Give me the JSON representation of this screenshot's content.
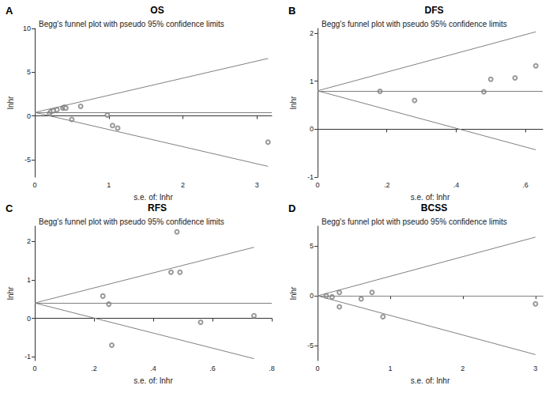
{
  "chart_data": [
    {
      "type": "scatter",
      "panel": "A",
      "title": "OS",
      "subtitle": "Begg's funnel plot with pseudo 95% confidence limits",
      "x_label": "s.e. of: lnhr",
      "y_label": "lnhr",
      "x": [
        0.2,
        0.22,
        0.25,
        0.3,
        0.38,
        0.4,
        0.42,
        0.5,
        0.62,
        0.98,
        1.05,
        1.12,
        3.15
      ],
      "values": [
        0.3,
        0.5,
        0.6,
        0.7,
        0.9,
        1.0,
        0.9,
        -0.4,
        1.1,
        0.1,
        -1.1,
        -1.4,
        -3.0
      ],
      "pooled_estimate": 0.4,
      "upper_limit": [
        [
          0,
          0.4
        ],
        [
          3.15,
          6.57
        ]
      ],
      "lower_limit": [
        [
          0,
          0.4
        ],
        [
          3.15,
          -5.77
        ]
      ],
      "xlim": [
        0,
        3.2
      ],
      "ylim": [
        -7,
        10
      ],
      "xticks": [
        0,
        1,
        2,
        3
      ],
      "yticks": [
        -5,
        0,
        5,
        10
      ],
      "color": "#808080",
      "marker": "hollow circle",
      "grid": false
    },
    {
      "type": "scatter",
      "panel": "B",
      "title": "DFS",
      "subtitle": "Begg's funnel plot with pseudo 95% confidence limits",
      "x_label": "s.e. of: lnhr",
      "y_label": "lnhr",
      "x": [
        0.18,
        0.28,
        0.48,
        0.5,
        0.57,
        0.63
      ],
      "values": [
        0.79,
        0.6,
        0.78,
        1.04,
        1.07,
        1.32
      ],
      "pooled_estimate": 0.8,
      "upper_limit": [
        [
          0,
          0.8
        ],
        [
          0.63,
          2.03
        ]
      ],
      "lower_limit": [
        [
          0,
          0.8
        ],
        [
          0.63,
          -0.43
        ]
      ],
      "xlim": [
        0,
        0.65
      ],
      "ylim": [
        -1,
        2.1
      ],
      "xticks": [
        0,
        {
          "value": 0.2,
          "label": ".2"
        },
        {
          "value": 0.4,
          "label": ".4"
        },
        {
          "value": 0.6,
          "label": ".6"
        }
      ],
      "yticks": [
        -1,
        0,
        1,
        2
      ],
      "color": "#808080",
      "marker": "hollow circle",
      "grid": false
    },
    {
      "type": "scatter",
      "panel": "C",
      "title": "RFS",
      "subtitle": "Begg's funnel plot with pseudo 95% confidence limits",
      "x_label": "s.e. of: lnhr",
      "y_label": "lnhr",
      "x": [
        0.23,
        0.25,
        0.26,
        0.46,
        0.48,
        0.49,
        0.56,
        0.74
      ],
      "values": [
        0.58,
        0.37,
        -0.7,
        1.2,
        2.25,
        1.2,
        -0.1,
        0.07
      ],
      "pooled_estimate": 0.4,
      "upper_limit": [
        [
          0,
          0.4
        ],
        [
          0.74,
          1.85
        ]
      ],
      "lower_limit": [
        [
          0,
          0.4
        ],
        [
          0.74,
          -1.05
        ]
      ],
      "xlim": [
        0,
        0.8
      ],
      "ylim": [
        -1.1,
        2.4
      ],
      "xticks": [
        0,
        {
          "value": 0.2,
          "label": ".2"
        },
        {
          "value": 0.4,
          "label": ".4"
        },
        {
          "value": 0.6,
          "label": ".6"
        },
        {
          "value": 0.8,
          "label": ".8"
        }
      ],
      "yticks": [
        -1,
        0,
        1,
        2
      ],
      "color": "#808080",
      "marker": "hollow circle",
      "grid": false
    },
    {
      "type": "scatter",
      "panel": "D",
      "title": "BCSS",
      "subtitle": "Begg's funnel plot with pseudo 95% confidence limits",
      "x_label": "s.e. of: lnhr",
      "y_label": "lnhr",
      "x": [
        0.12,
        0.2,
        0.3,
        0.3,
        0.6,
        0.75,
        0.9,
        3.0
      ],
      "values": [
        0.0,
        -0.1,
        0.35,
        -1.1,
        -0.3,
        0.35,
        -2.1,
        -0.8
      ],
      "pooled_estimate": 0,
      "upper_limit": [
        [
          0,
          0
        ],
        [
          3.0,
          5.9
        ]
      ],
      "lower_limit": [
        [
          0,
          0
        ],
        [
          3.0,
          -5.9
        ]
      ],
      "xlim": [
        0,
        3.1
      ],
      "ylim": [
        -6.5,
        7
      ],
      "xticks": [
        0,
        1,
        2,
        3
      ],
      "yticks": [
        -5,
        0,
        5
      ],
      "color": "#808080",
      "marker": "hollow circle",
      "grid": false
    }
  ]
}
